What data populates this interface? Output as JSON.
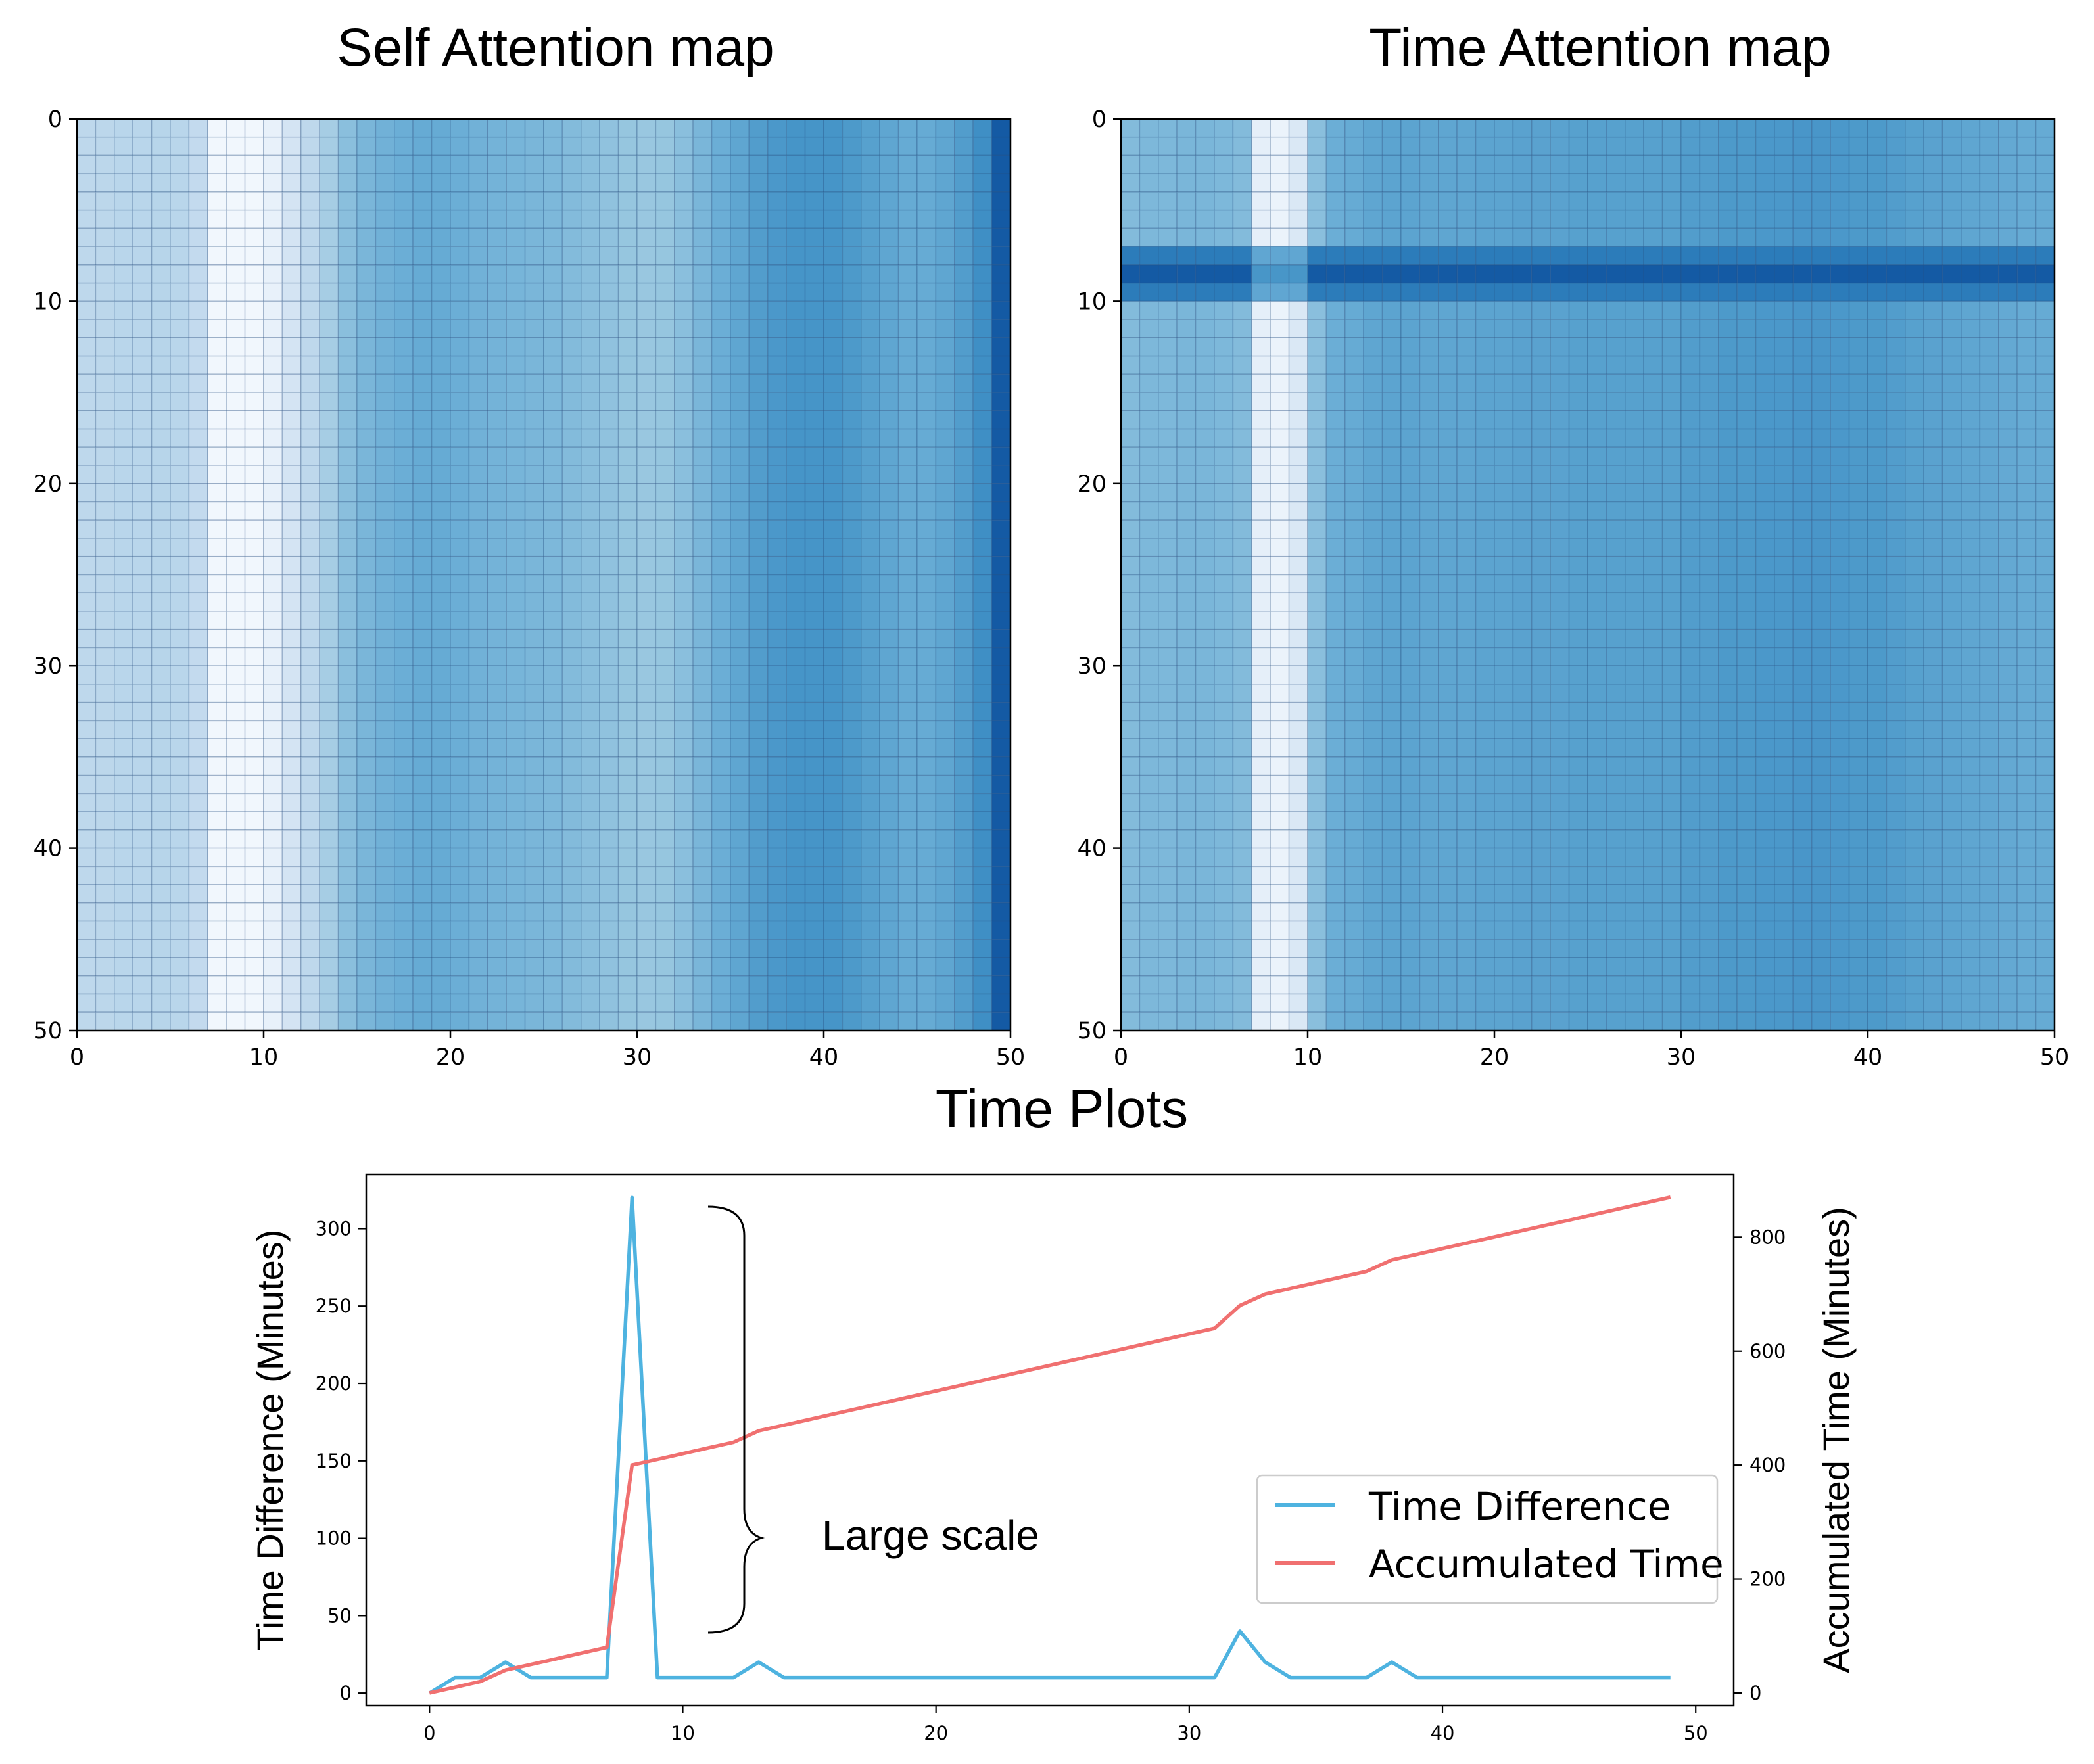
{
  "chart_data": [
    {
      "type": "heatmap",
      "title": "Self Attention map",
      "xlim": [
        0,
        50
      ],
      "ylim": [
        50,
        0
      ],
      "xticks": [
        "0",
        "10",
        "20",
        "30",
        "40",
        "50"
      ],
      "yticks": [
        "0",
        "10",
        "20",
        "30",
        "40",
        "50"
      ],
      "column_intensity": [
        0.2,
        0.21,
        0.22,
        0.22,
        0.23,
        0.22,
        0.18,
        0.02,
        0.02,
        0.02,
        0.05,
        0.12,
        0.2,
        0.3,
        0.4,
        0.45,
        0.48,
        0.5,
        0.52,
        0.52,
        0.5,
        0.48,
        0.47,
        0.46,
        0.45,
        0.44,
        0.42,
        0.4,
        0.38,
        0.36,
        0.35,
        0.36,
        0.4,
        0.45,
        0.5,
        0.55,
        0.6,
        0.63,
        0.65,
        0.65,
        0.65,
        0.62,
        0.58,
        0.55,
        0.52,
        0.52,
        0.55,
        0.6,
        0.68,
        0.92
      ],
      "row_modifier": [
        1,
        1,
        1,
        1,
        1,
        1,
        1,
        1,
        1,
        1,
        1,
        1,
        1,
        1,
        1,
        1,
        1,
        1,
        1,
        1,
        1,
        1,
        1,
        1,
        1,
        1,
        1,
        1,
        1,
        1,
        1,
        1,
        1,
        1,
        1,
        1,
        1,
        1,
        1,
        1,
        1,
        1,
        1,
        1,
        1,
        1,
        1,
        1,
        1,
        1
      ]
    },
    {
      "type": "heatmap",
      "title": "Time Attention map",
      "xlim": [
        0,
        50
      ],
      "ylim": [
        50,
        0
      ],
      "xticks": [
        "0",
        "10",
        "20",
        "30",
        "40",
        "50"
      ],
      "yticks": [
        "0",
        "10",
        "20",
        "30",
        "40",
        "50"
      ],
      "column_intensity": [
        0.42,
        0.44,
        0.44,
        0.45,
        0.45,
        0.44,
        0.42,
        0.06,
        0.04,
        0.1,
        0.4,
        0.5,
        0.52,
        0.55,
        0.56,
        0.56,
        0.55,
        0.55,
        0.55,
        0.56,
        0.56,
        0.57,
        0.57,
        0.57,
        0.58,
        0.58,
        0.58,
        0.58,
        0.58,
        0.58,
        0.6,
        0.6,
        0.62,
        0.62,
        0.63,
        0.63,
        0.64,
        0.64,
        0.63,
        0.62,
        0.62,
        0.6,
        0.58,
        0.57,
        0.56,
        0.55,
        0.54,
        0.53,
        0.52,
        0.52
      ],
      "special_rows": {
        "7": 0.78,
        "8": 0.92,
        "9": 0.78
      }
    },
    {
      "type": "line",
      "title": "Time Plots",
      "xlabel": "",
      "ylabel": "Time Difference (Minutes)",
      "ylabel_right": "Accumulated Time (Minutes)",
      "xlim": [
        -2.5,
        51.5
      ],
      "ylim": [
        -8,
        335
      ],
      "ylim_right": [
        -22,
        910
      ],
      "xticks": [
        "0",
        "10",
        "20",
        "30",
        "40",
        "50"
      ],
      "yticks": [
        "0",
        "50",
        "100",
        "150",
        "200",
        "250",
        "300"
      ],
      "yticks_right": [
        "0",
        "200",
        "400",
        "600",
        "800"
      ],
      "legend": [
        "Time Difference",
        "Accumulated Time"
      ],
      "legend_position": "lower-right",
      "annotation": "Large scale",
      "series": [
        {
          "name": "Time Difference",
          "axis": "left",
          "color": "#4eb3e0",
          "x": [
            0,
            1,
            2,
            3,
            4,
            5,
            6,
            7,
            8,
            9,
            10,
            11,
            12,
            13,
            14,
            15,
            16,
            17,
            18,
            19,
            20,
            21,
            22,
            23,
            24,
            25,
            26,
            27,
            28,
            29,
            30,
            31,
            32,
            33,
            34,
            35,
            36,
            37,
            38,
            39,
            40,
            41,
            42,
            43,
            44,
            45,
            46,
            47,
            48,
            49
          ],
          "values": [
            0,
            10,
            10,
            20,
            10,
            10,
            10,
            10,
            320,
            10,
            10,
            10,
            10,
            20,
            10,
            10,
            10,
            10,
            10,
            10,
            10,
            10,
            10,
            10,
            10,
            10,
            10,
            10,
            10,
            10,
            10,
            10,
            40,
            20,
            10,
            10,
            10,
            10,
            20,
            10,
            10,
            10,
            10,
            10,
            10,
            10,
            10,
            10,
            10,
            10
          ]
        },
        {
          "name": "Accumulated Time",
          "axis": "right",
          "color": "#f07070",
          "x": [
            0,
            1,
            2,
            3,
            4,
            5,
            6,
            7,
            8,
            9,
            10,
            11,
            12,
            13,
            14,
            15,
            16,
            17,
            18,
            19,
            20,
            21,
            22,
            23,
            24,
            25,
            26,
            27,
            28,
            29,
            30,
            31,
            32,
            33,
            34,
            35,
            36,
            37,
            38,
            39,
            40,
            41,
            42,
            43,
            44,
            45,
            46,
            47,
            48,
            49
          ],
          "values": [
            0,
            10,
            20,
            40,
            50,
            60,
            70,
            80,
            400,
            410,
            420,
            430,
            440,
            460,
            470,
            480,
            490,
            500,
            510,
            520,
            530,
            540,
            550,
            560,
            570,
            580,
            590,
            600,
            610,
            620,
            630,
            640,
            680,
            700,
            710,
            720,
            730,
            740,
            760,
            770,
            780,
            790,
            800,
            810,
            820,
            830,
            840,
            850,
            860,
            870
          ]
        }
      ]
    }
  ]
}
